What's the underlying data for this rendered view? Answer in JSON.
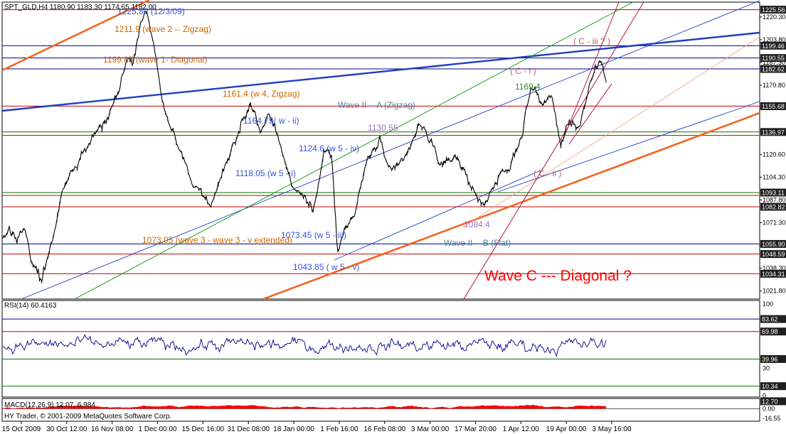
{
  "colors": {
    "background": "#ffffff",
    "price": "#000000",
    "orange_channel": "#f26522",
    "blue_trend": "#1f3fbf",
    "navy_line": "#00008b",
    "hline_red": "#cc0000",
    "hline_green": "#007700",
    "rsi_line": "#00008b",
    "macd_hist": "#ff0000",
    "tag_fill": "#202020",
    "green_channel": "#009900",
    "crimson": "#aa0033",
    "annot_orange": "#cc6600",
    "annot_blue": "#3355dd",
    "annot_teal": "#4a7f9a",
    "annot_purple": "#a070c8",
    "annot_green": "#338833",
    "annot_red": "#ff0000",
    "annot_pink": "#c06060"
  },
  "chart_data": [
    {
      "type": "line",
      "title": "SPT_GLD,H4  1180.90 1183.30 1174.65 1182.00",
      "ylim": [
        1016,
        1231
      ],
      "x_tick_labels": [
        "15 Oct 2009",
        "30 Oct 12:00",
        "16 Nov 08:00",
        "1 Dec 00:00",
        "15 Dec 16:00",
        "31 Dec 08:00",
        "18 Jan 00:00",
        "1 Feb 16:00",
        "16 Feb 08:00",
        "3 Mar 00:00",
        "17 Mar 20:00",
        "1 Apr 12:00",
        "19 Apr 00:00",
        "3 May 16:00"
      ],
      "y_tick_labels": [
        "1220.30",
        "1203.80",
        "1187.30",
        "1170.80",
        "1154.30",
        "1137.80",
        "1120.60",
        "1104.30",
        "1087.80",
        "1071.30",
        "1054.80",
        "1038.30",
        "1021.80"
      ],
      "y_tick_values": [
        1220.3,
        1203.8,
        1187.3,
        1170.8,
        1154.3,
        1137.8,
        1120.6,
        1104.3,
        1087.8,
        1071.3,
        1054.8,
        1038.3,
        1021.8
      ],
      "price_tags": [
        {
          "label": "1225.56",
          "value": 1225.56
        },
        {
          "label": "1199.46",
          "value": 1199.46
        },
        {
          "label": "1190.55",
          "value": 1190.55
        },
        {
          "label": "1182.62",
          "value": 1182.62
        },
        {
          "label": "1155.68",
          "value": 1155.68
        },
        {
          "label": "1136.97",
          "value": 1136.97
        },
        {
          "label": "1093.11",
          "value": 1093.11
        },
        {
          "label": "1082.82",
          "value": 1082.82
        },
        {
          "label": "1055.90",
          "value": 1055.9
        },
        {
          "label": "1048.59",
          "value": 1048.59
        },
        {
          "label": "1034.31",
          "value": 1034.31
        }
      ],
      "horizontal_lines": [
        {
          "value": 1225.56,
          "color": "#cc0000"
        },
        {
          "value": 1199.46,
          "color": "#00008b"
        },
        {
          "value": 1190.55,
          "color": "#00008b"
        },
        {
          "value": 1182.62,
          "color": "#00008b"
        },
        {
          "value": 1155.68,
          "color": "#cc0000"
        },
        {
          "value": 1136.97,
          "color": "#007700"
        },
        {
          "value": 1134.5,
          "color": "#cc0000"
        },
        {
          "value": 1093.11,
          "color": "#007700"
        },
        {
          "value": 1091.0,
          "color": "#cc0000"
        },
        {
          "value": 1082.82,
          "color": "#cc0000"
        },
        {
          "value": 1055.9,
          "color": "#00008b"
        },
        {
          "value": 1048.59,
          "color": "#cc0000"
        },
        {
          "value": 1034.31,
          "color": "#cc0000"
        }
      ],
      "anchors": [
        {
          "t": 0,
          "v": 1060
        },
        {
          "t": 0.01,
          "v": 1068
        },
        {
          "t": 0.022,
          "v": 1058
        },
        {
          "t": 0.035,
          "v": 1067
        },
        {
          "t": 0.05,
          "v": 1040
        },
        {
          "t": 0.064,
          "v": 1029
        },
        {
          "t": 0.08,
          "v": 1057
        },
        {
          "t": 0.1,
          "v": 1095
        },
        {
          "t": 0.12,
          "v": 1110
        },
        {
          "t": 0.15,
          "v": 1135
        },
        {
          "t": 0.17,
          "v": 1142
        },
        {
          "t": 0.19,
          "v": 1167
        },
        {
          "t": 0.205,
          "v": 1188
        },
        {
          "t": 0.215,
          "v": 1184
        },
        {
          "t": 0.228,
          "v": 1215
        },
        {
          "t": 0.238,
          "v": 1227
        },
        {
          "t": 0.252,
          "v": 1198
        },
        {
          "t": 0.263,
          "v": 1162
        },
        {
          "t": 0.275,
          "v": 1141
        },
        {
          "t": 0.29,
          "v": 1128
        },
        {
          "t": 0.315,
          "v": 1100
        },
        {
          "t": 0.345,
          "v": 1083
        },
        {
          "t": 0.375,
          "v": 1120
        },
        {
          "t": 0.41,
          "v": 1158
        },
        {
          "t": 0.428,
          "v": 1138
        },
        {
          "t": 0.442,
          "v": 1152
        },
        {
          "t": 0.46,
          "v": 1128
        },
        {
          "t": 0.48,
          "v": 1097
        },
        {
          "t": 0.5,
          "v": 1090
        },
        {
          "t": 0.515,
          "v": 1078
        },
        {
          "t": 0.532,
          "v": 1126
        },
        {
          "t": 0.545,
          "v": 1120
        },
        {
          "t": 0.555,
          "v": 1049
        },
        {
          "t": 0.567,
          "v": 1065
        },
        {
          "t": 0.585,
          "v": 1080
        },
        {
          "t": 0.605,
          "v": 1118
        },
        {
          "t": 0.625,
          "v": 1130
        },
        {
          "t": 0.645,
          "v": 1105
        },
        {
          "t": 0.67,
          "v": 1120
        },
        {
          "t": 0.69,
          "v": 1142
        },
        {
          "t": 0.71,
          "v": 1130
        },
        {
          "t": 0.73,
          "v": 1110
        },
        {
          "t": 0.75,
          "v": 1121
        },
        {
          "t": 0.775,
          "v": 1099
        },
        {
          "t": 0.795,
          "v": 1083
        },
        {
          "t": 0.815,
          "v": 1100
        },
        {
          "t": 0.84,
          "v": 1110
        },
        {
          "t": 0.86,
          "v": 1135
        },
        {
          "t": 0.875,
          "v": 1169
        },
        {
          "t": 0.895,
          "v": 1158
        },
        {
          "t": 0.91,
          "v": 1162
        },
        {
          "t": 0.925,
          "v": 1128
        },
        {
          "t": 0.94,
          "v": 1145
        },
        {
          "t": 0.955,
          "v": 1141
        },
        {
          "t": 0.975,
          "v": 1172
        },
        {
          "t": 0.99,
          "v": 1188
        },
        {
          "t": 1.0,
          "v": 1175
        }
      ]
    },
    {
      "type": "line",
      "title": "RSI(14) 60.4163",
      "ylim": [
        0,
        100
      ],
      "y_tick_labels": [
        "100",
        "70",
        "30",
        "0"
      ],
      "y_tick_values": [
        100,
        70,
        30,
        0
      ],
      "price_tags": [
        {
          "label": "83.62",
          "value": 83.62
        },
        {
          "label": "69.98",
          "value": 69.98
        },
        {
          "label": "39.96",
          "value": 39.96
        },
        {
          "label": "10.34",
          "value": 10.34
        }
      ],
      "horizontal_lines": [
        {
          "value": 83.62,
          "color": "#00008b"
        },
        {
          "value": 69.98,
          "color": "#cc0000"
        },
        {
          "value": 39.96,
          "color": "#007700"
        },
        {
          "value": 10.34,
          "color": "#007700"
        }
      ],
      "last_value": 60.4163
    },
    {
      "type": "bar",
      "title": "MACD(12,26,9) 12.07, 6.984",
      "ylim": [
        -20,
        15
      ],
      "y_tick_labels": [
        "0.00",
        "-16.55"
      ],
      "y_tick_values": [
        0,
        -16.55
      ],
      "price_tags": [
        {
          "label": "12.70",
          "value": 12.7
        }
      ]
    }
  ],
  "copyright": "HY Trader, © 2001-2009 MetaQuotes Software Corp.",
  "annotations": [
    {
      "text": "1225.80 (12/3/09)",
      "color": "#3355dd"
    },
    {
      "text": "1211.9 (wave 2 -- Zigzag)",
      "color": "#cc6600"
    },
    {
      "text": "1199.85 (wave 1- Diagonal)",
      "color": "#cc6600"
    },
    {
      "text": "1161.4 (w 4, Zigzag)",
      "color": "#cc6600"
    },
    {
      "text": "1164.75( w - ii)",
      "color": "#3355dd"
    },
    {
      "text": "Wave II -- A (Zigzag)",
      "color": "#4a7f9a"
    },
    {
      "text": "1130.55",
      "color": "#a070c8"
    },
    {
      "text": "1124.6 (w 5 - iv)",
      "color": "#3355dd"
    },
    {
      "text": "1118.05 (w 5 - i)",
      "color": "#3355dd"
    },
    {
      "text": "1073.95 (wave 3 - wave 3 - v extended)",
      "color": "#cc6600"
    },
    {
      "text": "1073.45 (w 5 - iii)",
      "color": "#3355dd"
    },
    {
      "text": "1043.85 ( w 5 - v)",
      "color": "#3355dd"
    },
    {
      "text": "1084.4",
      "color": "#a070c8"
    },
    {
      "text": "Wave II -- B (Flat)",
      "color": "#4a7f9a"
    },
    {
      "text": "1169.4",
      "color": "#338833"
    },
    {
      "text": "( C - i )",
      "color": "#c06060"
    },
    {
      "text": "( C - iii ? )",
      "color": "#c06060"
    },
    {
      "text": "( C - ii )",
      "color": "#c06060"
    },
    {
      "text": "Wave C ---  Diagonal ?",
      "color": "#ff0000"
    }
  ]
}
